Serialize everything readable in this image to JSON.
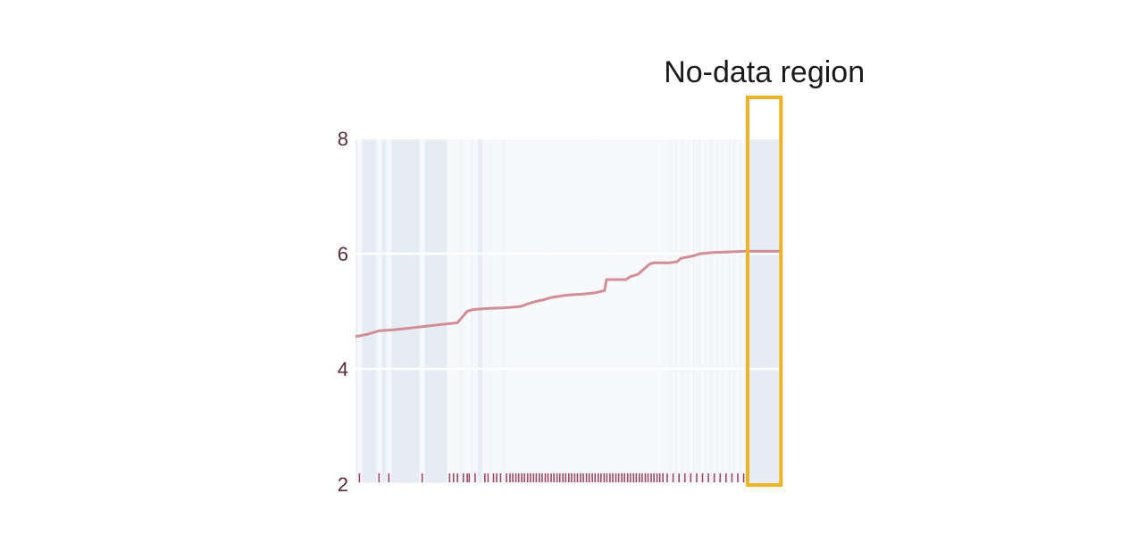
{
  "chart_data": {
    "type": "line",
    "title": "",
    "xlabel": "",
    "ylabel": "",
    "ylim": [
      2,
      8
    ],
    "xlim": [
      0,
      100
    ],
    "y_ticks": [
      "2",
      "4",
      "6",
      "8"
    ],
    "grid": true,
    "series": [
      {
        "x": [
          0,
          3,
          6,
          10,
          14,
          18,
          22,
          26,
          27,
          28.5,
          30,
          34,
          38,
          42,
          44,
          46,
          48,
          50,
          54,
          58,
          61,
          63.5,
          64,
          69,
          70,
          72,
          73,
          75,
          76,
          80,
          82,
          83,
          86,
          88,
          91,
          95,
          99,
          100,
          108.5
        ],
        "y": [
          4.56,
          4.6,
          4.66,
          4.68,
          4.71,
          4.74,
          4.77,
          4.8,
          4.88,
          5.0,
          5.03,
          5.05,
          5.06,
          5.08,
          5.13,
          5.17,
          5.2,
          5.24,
          5.28,
          5.3,
          5.32,
          5.36,
          5.55,
          5.55,
          5.6,
          5.64,
          5.7,
          5.82,
          5.84,
          5.84,
          5.86,
          5.92,
          5.96,
          6.0,
          6.02,
          6.03,
          6.04,
          6.04,
          6.04
        ]
      }
    ],
    "rug_x": [
      1,
      6,
      8.5,
      17,
      24,
      25,
      26,
      27.5,
      28.5,
      29,
      30.5,
      33,
      33.8,
      35.2,
      36,
      37,
      38.5,
      39.4,
      40.1,
      40.9,
      41.6,
      42.4,
      43.1,
      43.9,
      44.6,
      45.4,
      46.1,
      46.9,
      47.6,
      48.4,
      49.1,
      49.9,
      50.6,
      51.4,
      52.1,
      52.9,
      53.6,
      54.4,
      55.1,
      55.9,
      56.6,
      57.4,
      58.1,
      58.9,
      59.6,
      60.4,
      61.1,
      61.9,
      62.6,
      63.4,
      64.1,
      64.9,
      65.6,
      66.4,
      67.1,
      67.9,
      68.6,
      69.4,
      70.1,
      70.9,
      71.6,
      72.4,
      73.1,
      73.9,
      74.6,
      75.4,
      76.1,
      76.9,
      77.6,
      78.4,
      79.5,
      81,
      82.5,
      84,
      85.5,
      87,
      88.5,
      90,
      91.5,
      93,
      94.5,
      96,
      97.5,
      99
    ],
    "annotation": {
      "label": "No-data region",
      "x_range": [
        100,
        108.5
      ],
      "color": "#f0b323"
    },
    "colors": {
      "line": "#d18e94",
      "rug": "#a0485e",
      "plot_bg": "#e6ecf4",
      "plot_bg_dense": "#f7f9fc",
      "gridline": "#ffffff"
    }
  }
}
